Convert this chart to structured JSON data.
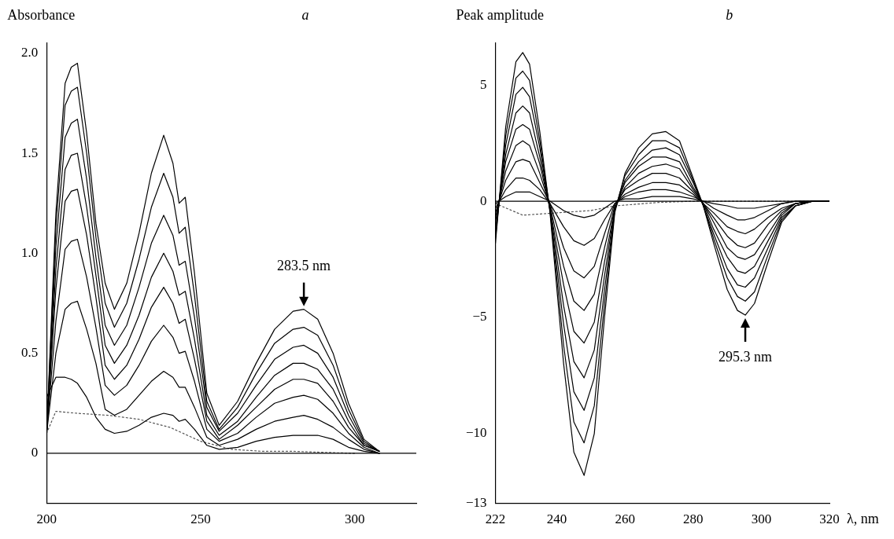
{
  "chart_data": [
    {
      "type": "line",
      "title": "a",
      "ylabel": "Absorbance",
      "x": [
        200,
        203,
        206,
        208,
        210,
        213,
        216,
        219,
        222,
        226,
        230,
        234,
        238,
        241,
        243,
        245,
        248,
        252,
        256,
        262,
        268,
        274,
        280,
        283.5,
        288,
        293,
        298,
        303,
        308
      ],
      "xlim": [
        200,
        320
      ],
      "ylim": [
        -0.25,
        2.05
      ],
      "xticks": [
        200,
        250,
        300
      ],
      "yticks": [
        0,
        0.5,
        {
          "value": 1,
          "label": "1.0"
        },
        1.5,
        {
          "value": 2,
          "label": "2.0"
        }
      ],
      "grid": false,
      "legend": false,
      "marker": "none",
      "line_style": "solid",
      "series": [
        {
          "color": "#000000",
          "values": [
            0.1,
            1.2,
            1.85,
            1.93,
            1.95,
            1.6,
            1.15,
            0.85,
            0.72,
            0.85,
            1.1,
            1.4,
            1.59,
            1.45,
            1.25,
            1.28,
            0.9,
            0.3,
            0.14,
            0.26,
            0.45,
            0.62,
            0.71,
            0.72,
            0.67,
            0.5,
            0.25,
            0.07,
            0.01
          ]
        },
        {
          "color": "#000000",
          "values": [
            0.1,
            1.13,
            1.74,
            1.81,
            1.83,
            1.5,
            1.08,
            0.75,
            0.63,
            0.75,
            0.97,
            1.23,
            1.4,
            1.28,
            1.1,
            1.13,
            0.79,
            0.26,
            0.12,
            0.23,
            0.4,
            0.55,
            0.62,
            0.63,
            0.59,
            0.44,
            0.22,
            0.06,
            0.01
          ]
        },
        {
          "color": "#000000",
          "values": [
            0.1,
            1.03,
            1.58,
            1.65,
            1.67,
            1.37,
            0.98,
            0.64,
            0.54,
            0.64,
            0.83,
            1.05,
            1.19,
            1.09,
            0.94,
            0.96,
            0.68,
            0.23,
            0.11,
            0.2,
            0.34,
            0.47,
            0.53,
            0.54,
            0.5,
            0.38,
            0.19,
            0.05,
            0.01
          ]
        },
        {
          "color": "#000000",
          "values": [
            0.1,
            0.92,
            1.42,
            1.49,
            1.5,
            1.23,
            0.89,
            0.54,
            0.45,
            0.54,
            0.69,
            0.88,
            1.0,
            0.91,
            0.79,
            0.81,
            0.57,
            0.19,
            0.09,
            0.16,
            0.28,
            0.39,
            0.45,
            0.45,
            0.42,
            0.32,
            0.16,
            0.04,
            0.01
          ]
        },
        {
          "color": "#000000",
          "values": [
            0.1,
            0.82,
            1.26,
            1.31,
            1.32,
            1.09,
            0.78,
            0.44,
            0.37,
            0.44,
            0.57,
            0.73,
            0.83,
            0.75,
            0.65,
            0.67,
            0.47,
            0.16,
            0.07,
            0.14,
            0.23,
            0.32,
            0.37,
            0.37,
            0.35,
            0.26,
            0.13,
            0.04,
            0.01
          ]
        },
        {
          "color": "#000000",
          "values": [
            0.1,
            0.66,
            1.02,
            1.06,
            1.07,
            0.88,
            0.63,
            0.34,
            0.29,
            0.34,
            0.44,
            0.56,
            0.64,
            0.58,
            0.5,
            0.51,
            0.36,
            0.12,
            0.06,
            0.1,
            0.18,
            0.25,
            0.28,
            0.29,
            0.27,
            0.2,
            0.1,
            0.03,
            0
          ]
        },
        {
          "color": "#000000",
          "values": [
            0.1,
            0.5,
            0.72,
            0.75,
            0.76,
            0.62,
            0.45,
            0.22,
            0.19,
            0.22,
            0.29,
            0.36,
            0.41,
            0.38,
            0.33,
            0.33,
            0.23,
            0.08,
            0.04,
            0.07,
            0.12,
            0.16,
            0.18,
            0.19,
            0.17,
            0.13,
            0.07,
            0.02,
            0
          ]
        },
        {
          "color": "#000000",
          "values": [
            0.28,
            0.38,
            0.38,
            0.37,
            0.35,
            0.28,
            0.18,
            0.12,
            0.1,
            0.11,
            0.14,
            0.18,
            0.2,
            0.19,
            0.16,
            0.17,
            0.12,
            0.04,
            0.02,
            0.03,
            0.06,
            0.08,
            0.09,
            0.09,
            0.09,
            0.07,
            0.03,
            0.01,
            0
          ]
        },
        {
          "color": "#555555",
          "line_style": "dotted",
          "x": [
            200,
            203,
            210,
            220,
            230,
            240,
            250,
            260,
            270,
            280,
            300
          ],
          "values": [
            0.1,
            0.21,
            0.2,
            0.19,
            0.17,
            0.13,
            0.06,
            0.02,
            0.01,
            0.01,
            0
          ]
        }
      ],
      "ref_lines": [
        {
          "axis": "y",
          "value": 0
        }
      ],
      "annotations": [
        {
          "text": "283.5 nm",
          "x": 283.5,
          "y": 0.72
        }
      ]
    },
    {
      "type": "line",
      "title": "b",
      "ylabel": "Peak amplitude",
      "xlabel": "λ, nm",
      "x": [
        222,
        225,
        228,
        230,
        232,
        235,
        238,
        242,
        245,
        248,
        251,
        254,
        257,
        260,
        264,
        268,
        272,
        276,
        280,
        283,
        286,
        290,
        293,
        295.3,
        298,
        302,
        306,
        310,
        315,
        320
      ],
      "xlim": [
        222,
        320
      ],
      "ylim": [
        -13,
        6.8
      ],
      "xticks": [
        222,
        240,
        260,
        280,
        300,
        320
      ],
      "yticks": [
        5,
        0,
        {
          "value": -5,
          "label": "−5"
        },
        {
          "value": -10,
          "label": "−10"
        },
        {
          "value": -13,
          "label": "−13"
        }
      ],
      "grid": false,
      "legend": false,
      "marker": "none",
      "line_style": "solid",
      "series": [
        {
          "color": "#000000",
          "values": [
            -1.8,
            3.2,
            6.0,
            6.4,
            5.9,
            3.0,
            -0.5,
            -7.0,
            -10.8,
            -11.8,
            -10.0,
            -5.0,
            -0.5,
            1.2,
            2.3,
            2.9,
            3.0,
            2.6,
            1.0,
            -0.2,
            -1.8,
            -3.8,
            -4.7,
            -4.9,
            -4.4,
            -2.6,
            -0.9,
            -0.2,
            0,
            0
          ]
        },
        {
          "color": "#000000",
          "values": [
            -1.6,
            2.8,
            5.3,
            5.6,
            5.2,
            2.6,
            -0.4,
            -6.2,
            -9.5,
            -10.4,
            -8.8,
            -4.4,
            -0.4,
            1.1,
            2.0,
            2.6,
            2.6,
            2.3,
            0.9,
            -0.2,
            -1.6,
            -3.3,
            -4.1,
            -4.3,
            -3.9,
            -2.3,
            -0.8,
            -0.2,
            0,
            0
          ]
        },
        {
          "color": "#000000",
          "values": [
            -1.4,
            2.4,
            4.6,
            4.9,
            4.5,
            2.3,
            -0.4,
            -5.3,
            -8.2,
            -9.0,
            -7.6,
            -3.8,
            -0.4,
            0.9,
            1.7,
            2.2,
            2.3,
            2.0,
            0.8,
            -0.2,
            -1.4,
            -2.9,
            -3.6,
            -3.7,
            -3.3,
            -2.0,
            -0.7,
            -0.2,
            0,
            0
          ]
        },
        {
          "color": "#000000",
          "values": [
            -1.2,
            2.0,
            3.8,
            4.1,
            3.8,
            1.9,
            -0.3,
            -4.5,
            -6.9,
            -7.6,
            -6.4,
            -3.2,
            -0.3,
            0.8,
            1.5,
            1.9,
            1.9,
            1.7,
            0.6,
            -0.1,
            -1.2,
            -2.4,
            -3.0,
            -3.1,
            -2.8,
            -1.7,
            -0.6,
            -0.1,
            0,
            0
          ]
        },
        {
          "color": "#000000",
          "values": [
            -0.9,
            1.7,
            3.1,
            3.3,
            3.1,
            1.6,
            -0.3,
            -3.6,
            -5.6,
            -6.1,
            -5.2,
            -2.6,
            -0.3,
            0.6,
            1.2,
            1.5,
            1.6,
            1.4,
            0.5,
            -0.1,
            -0.9,
            -2.0,
            -2.4,
            -2.5,
            -2.3,
            -1.4,
            -0.5,
            -0.1,
            0,
            0
          ]
        },
        {
          "color": "#000000",
          "values": [
            -0.7,
            1.3,
            2.4,
            2.6,
            2.4,
            1.2,
            -0.2,
            -2.8,
            -4.3,
            -4.7,
            -4.0,
            -2.0,
            -0.2,
            0.5,
            0.9,
            1.2,
            1.2,
            1.0,
            0.4,
            -0.1,
            -0.7,
            -1.5,
            -1.9,
            -2.0,
            -1.8,
            -1.0,
            -0.4,
            -0.1,
            0,
            0
          ]
        },
        {
          "color": "#000000",
          "values": [
            -0.5,
            0.9,
            1.7,
            1.8,
            1.7,
            0.8,
            -0.1,
            -2.0,
            -3.0,
            -3.3,
            -2.8,
            -1.4,
            -0.1,
            0.3,
            0.6,
            0.8,
            0.8,
            0.7,
            0.3,
            -0.1,
            -0.5,
            -1.1,
            -1.3,
            -1.4,
            -1.2,
            -0.7,
            -0.3,
            -0.1,
            0,
            0
          ]
        },
        {
          "color": "#000000",
          "values": [
            -0.3,
            0.5,
            1.0,
            1.0,
            0.9,
            0.5,
            -0.1,
            -1.1,
            -1.7,
            -1.9,
            -1.6,
            -0.8,
            -0.1,
            0.2,
            0.4,
            0.5,
            0.5,
            0.4,
            0.2,
            0,
            -0.3,
            -0.6,
            -0.8,
            -0.8,
            -0.7,
            -0.4,
            -0.1,
            0,
            0,
            0
          ]
        },
        {
          "color": "#000000",
          "values": [
            -0.1,
            0.2,
            0.4,
            0.4,
            0.4,
            0.2,
            0,
            -0.4,
            -0.6,
            -0.7,
            -0.6,
            -0.3,
            0,
            0.1,
            0.1,
            0.2,
            0.2,
            0.2,
            0.1,
            0,
            -0.1,
            -0.2,
            -0.3,
            -0.3,
            -0.3,
            -0.2,
            -0.1,
            0,
            0,
            0
          ]
        },
        {
          "color": "#555555",
          "line_style": "dotted",
          "x": [
            222,
            230,
            240,
            250,
            257,
            270,
            280,
            320
          ],
          "values": [
            -0.1,
            -0.6,
            -0.5,
            -0.4,
            -0.2,
            -0.05,
            0,
            0
          ]
        }
      ],
      "ref_lines": [
        {
          "axis": "y",
          "value": 0
        }
      ],
      "annotations": [
        {
          "text": "295.3 nm",
          "x": 295.3,
          "y": -4.9
        }
      ]
    }
  ]
}
